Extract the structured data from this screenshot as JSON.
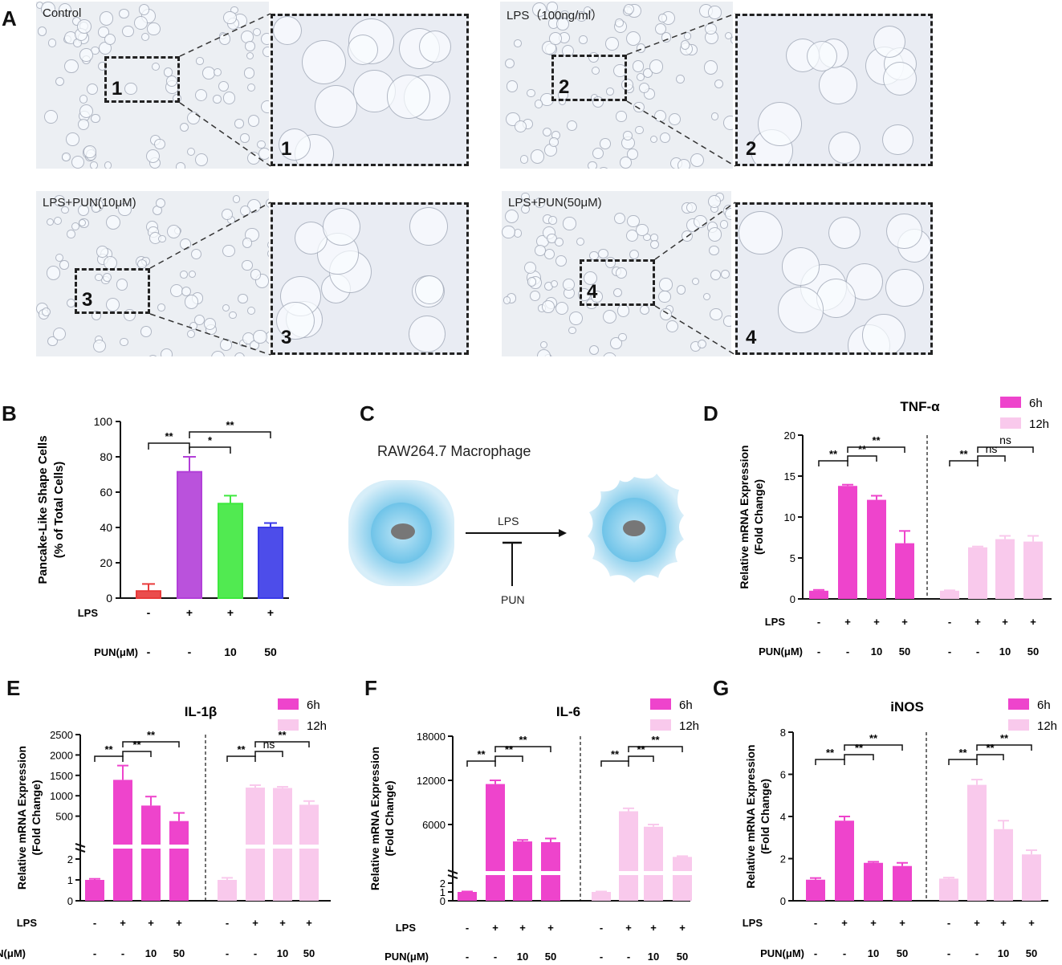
{
  "panelA": {
    "letter": "A",
    "images": [
      {
        "label": "Control",
        "box": "1"
      },
      {
        "label": "LPS（100ng/ml）",
        "box": "2"
      },
      {
        "label": "LPS+PUN(10μM)",
        "box": "3"
      },
      {
        "label": "LPS+PUN(50μM)",
        "box": "4"
      }
    ]
  },
  "panelB": {
    "letter": "B",
    "ylabel1": "Pancake-Like Shape Cells",
    "ylabel2": "(% of Total Cells)",
    "row_lps": "LPS",
    "row_pun": "PUN(μM)"
  },
  "panelC": {
    "letter": "C",
    "title": "RAW264.7 Macrophage",
    "lps": "LPS",
    "pun": "PUN"
  },
  "panelD": {
    "letter": "D"
  },
  "panelE": {
    "letter": "E"
  },
  "panelF": {
    "letter": "F"
  },
  "panelG": {
    "letter": "G"
  },
  "colors": {
    "c6h": "#ee44cc",
    "c12h": "#f9c9ec"
  },
  "chart_data": [
    {
      "id": "B",
      "type": "bar",
      "categories": [
        "Control",
        "LPS",
        "LPS+PUN10",
        "LPS+PUN50"
      ],
      "values": [
        4,
        71.5,
        53.5,
        40
      ],
      "errors": [
        4,
        8.5,
        4.5,
        2.5
      ],
      "colors": [
        "#e83a3a",
        "#b23fd8",
        "#3ee83e",
        "#3a3ae8"
      ],
      "ylim": [
        0,
        100
      ],
      "yticks": [
        "0",
        "20",
        "40",
        "60",
        "80",
        "100"
      ],
      "lps": [
        "-",
        "+",
        "+",
        "+"
      ],
      "pun": [
        "-",
        "-",
        "10",
        "50"
      ],
      "sig": [
        {
          "from": 0,
          "to": 1,
          "label": "**"
        },
        {
          "from": 1,
          "to": 2,
          "label": "*"
        },
        {
          "from": 1,
          "to": 3,
          "label": "**"
        }
      ]
    },
    {
      "id": "D",
      "type": "bar",
      "title": "TNF-α",
      "ylabel1": "Relative mRNA Expression",
      "ylabel2": "(Fold Change)",
      "legend": [
        "6h",
        "12h"
      ],
      "ylim": [
        0,
        20
      ],
      "yticks": [
        "0",
        "5",
        "10",
        "15",
        "20"
      ],
      "series": [
        {
          "name": "6h",
          "values": [
            1,
            13.8,
            12.1,
            6.8
          ],
          "errors": [
            0.1,
            0.15,
            0.5,
            1.5
          ]
        },
        {
          "name": "12h",
          "values": [
            1,
            6.3,
            7.3,
            7.0
          ],
          "errors": [
            0.05,
            0.1,
            0.4,
            0.7
          ]
        }
      ],
      "lps": [
        "-",
        "+",
        "+",
        "+"
      ],
      "pun": [
        "-",
        "-",
        "10",
        "50"
      ],
      "sig6": [
        "**",
        "**",
        "**"
      ],
      "sig12": [
        "**",
        "ns",
        "ns"
      ],
      "row_lps": "LPS",
      "row_pun": "PUN(μM)"
    },
    {
      "id": "E",
      "type": "bar",
      "title": "IL-1β",
      "ylabel1": "Relative mRNA Expression",
      "ylabel2": "(Fold Change)",
      "legend": [
        "6h",
        "12h"
      ],
      "yticks_low": [
        "0",
        "1",
        "2"
      ],
      "yticks_high": [
        "500",
        "1000",
        "1500",
        "2000",
        "2500"
      ],
      "series": [
        {
          "name": "6h",
          "values": [
            1,
            1390,
            760,
            380
          ],
          "errors": [
            0.05,
            350,
            220,
            200
          ]
        },
        {
          "name": "12h",
          "values": [
            1,
            1200,
            1190,
            780
          ],
          "errors": [
            0.1,
            60,
            30,
            90
          ]
        }
      ],
      "lps": [
        "-",
        "+",
        "+",
        "+"
      ],
      "pun": [
        "-",
        "-",
        "10",
        "50"
      ],
      "sig6": [
        "**",
        "**",
        "**"
      ],
      "sig12": [
        "**",
        "ns",
        "**"
      ],
      "row_lps": "LPS",
      "row_pun": "PUN(μM)"
    },
    {
      "id": "F",
      "type": "bar",
      "title": "IL-6",
      "ylabel1": "Relative mRNA Expression",
      "ylabel2": "(Fold Change)",
      "legend": [
        "6h",
        "12h"
      ],
      "yticks_low": [
        "0",
        "1",
        "2"
      ],
      "yticks_high": [
        "6000",
        "12000",
        "18000"
      ],
      "series": [
        {
          "name": "6h",
          "values": [
            1,
            11500,
            3700,
            3600
          ],
          "errors": [
            0.05,
            500,
            200,
            500
          ]
        },
        {
          "name": "12h",
          "values": [
            1,
            7800,
            5700,
            1600
          ],
          "errors": [
            0.05,
            400,
            300,
            100
          ]
        }
      ],
      "lps": [
        "-",
        "+",
        "+",
        "+"
      ],
      "pun": [
        "-",
        "-",
        "10",
        "50"
      ],
      "sig6": [
        "**",
        "**",
        "**"
      ],
      "sig12": [
        "**",
        "**",
        "**"
      ],
      "row_lps": "LPS",
      "row_pun": "PUN(μM)"
    },
    {
      "id": "G",
      "type": "bar",
      "title": "iNOS",
      "ylabel1": "Relative mRNA Expression",
      "ylabel2": "(Fold Change)",
      "legend": [
        "6h",
        "12h"
      ],
      "ylim": [
        0,
        8
      ],
      "yticks": [
        "0",
        "2",
        "4",
        "6",
        "8"
      ],
      "series": [
        {
          "name": "6h",
          "values": [
            1,
            3.8,
            1.8,
            1.65
          ],
          "errors": [
            0.08,
            0.2,
            0.05,
            0.15
          ]
        },
        {
          "name": "12h",
          "values": [
            1.05,
            5.5,
            3.4,
            2.2
          ],
          "errors": [
            0.05,
            0.25,
            0.4,
            0.2
          ]
        }
      ],
      "lps": [
        "-",
        "+",
        "+",
        "+"
      ],
      "pun": [
        "-",
        "-",
        "10",
        "50"
      ],
      "sig6": [
        "**",
        "**",
        "**"
      ],
      "sig12": [
        "**",
        "**",
        "**"
      ],
      "row_lps": "LPS",
      "row_pun": "PUN(μM)"
    }
  ]
}
